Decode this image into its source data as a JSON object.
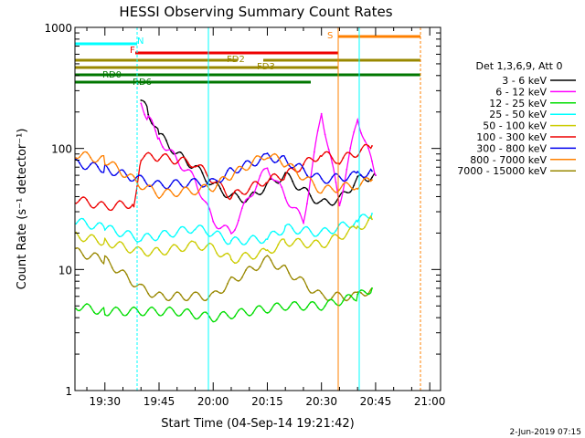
{
  "chart_data": {
    "type": "line",
    "title": "HESSI Observing Summary Count Rates",
    "xlabel": "Start Time (04-Sep-14 19:21:42)",
    "ylabel": "Count Rate (s⁻¹ detector⁻¹)",
    "yscale": "log",
    "ylim": [
      1,
      1000
    ],
    "xlim": [
      "19:21:42",
      "21:03:00"
    ],
    "x_ticks": [
      "19:30",
      "19:45",
      "20:00",
      "20:15",
      "20:30",
      "20:45",
      "21:00"
    ],
    "y_ticks": [
      "1",
      "10",
      "100",
      "1000"
    ],
    "grid": false,
    "legend": {
      "placement": "right",
      "header": "Det 1,3,6,9, Att 0",
      "entries": [
        {
          "label": "3 - 6 keV",
          "color": "#000000"
        },
        {
          "label": "6 - 12 keV",
          "color": "#ff00ff"
        },
        {
          "label": "12 - 25 keV",
          "color": "#00dd00"
        },
        {
          "label": "25 - 50 keV",
          "color": "#00ffff"
        },
        {
          "label": "50 - 100 keV",
          "color": "#cccc00"
        },
        {
          "label": "100 - 300 keV",
          "color": "#ee0000"
        },
        {
          "label": "300 - 800 keV",
          "color": "#0000ee"
        },
        {
          "label": "800 - 7000 keV",
          "color": "#ff8000"
        },
        {
          "label": "7000 - 15000 keV",
          "color": "#998800"
        }
      ]
    },
    "flags": [
      {
        "label": "N",
        "color": "#00ffff"
      },
      {
        "label": "F",
        "color": "#ee0000"
      },
      {
        "label": "S",
        "color": "#ff8000"
      },
      {
        "label": "FD2",
        "color": "#998800"
      },
      {
        "label": "FD3",
        "color": "#998800"
      },
      {
        "label": "RD0",
        "color": "#007700"
      },
      {
        "label": "RD6",
        "color": "#007700"
      }
    ],
    "series": [
      {
        "band": "3 - 6 keV",
        "x": [
          "19:40",
          "19:42",
          "19:45",
          "19:50",
          "19:55",
          "20:00",
          "20:05",
          "20:10",
          "20:15",
          "20:20",
          "20:25",
          "20:30",
          "20:35",
          "20:40",
          "20:45"
        ],
        "values": [
          250,
          200,
          130,
          90,
          70,
          50,
          40,
          38,
          50,
          60,
          45,
          35,
          38,
          55,
          60
        ]
      },
      {
        "band": "6 - 12 keV",
        "x": [
          "19:40",
          "19:42",
          "19:45",
          "19:50",
          "19:55",
          "20:00",
          "20:05",
          "20:10",
          "20:15",
          "20:20",
          "20:25",
          "20:30",
          "20:35",
          "20:40",
          "20:45"
        ],
        "values": [
          230,
          180,
          120,
          80,
          55,
          25,
          20,
          40,
          70,
          40,
          25,
          200,
          35,
          180,
          60
        ]
      },
      {
        "band": "25 - 50 keV",
        "x": [
          "19:22",
          "19:30",
          "19:40",
          "19:45",
          "19:55",
          "20:00",
          "20:05",
          "20:15",
          "20:20",
          "20:30",
          "20:40",
          "20:44"
        ],
        "values": [
          25,
          22,
          18,
          19,
          22,
          20,
          17,
          18,
          22,
          20,
          25,
          29
        ]
      },
      {
        "band": "50 - 100 keV",
        "x": [
          "19:22",
          "19:30",
          "19:40",
          "19:45",
          "19:55",
          "20:00",
          "20:05",
          "20:15",
          "20:20",
          "20:30",
          "20:40",
          "20:44"
        ],
        "values": [
          19,
          17,
          14,
          14,
          16,
          15,
          12,
          14,
          17,
          16,
          22,
          26
        ]
      },
      {
        "band": "100 - 300 keV",
        "x": [
          "19:22",
          "19:30",
          "19:38",
          "19:40",
          "19:45",
          "19:55",
          "20:00",
          "20:05",
          "20:15",
          "20:20",
          "20:30",
          "20:35",
          "20:44"
        ],
        "values": [
          38,
          33,
          35,
          85,
          85,
          75,
          55,
          40,
          55,
          60,
          90,
          80,
          105
        ]
      },
      {
        "band": "300 - 800 keV",
        "x": [
          "19:22",
          "19:30",
          "19:40",
          "19:45",
          "19:55",
          "20:00",
          "20:05",
          "20:15",
          "20:20",
          "20:30",
          "20:40",
          "20:44"
        ],
        "values": [
          75,
          68,
          55,
          50,
          52,
          52,
          65,
          85,
          80,
          55,
          60,
          65
        ]
      },
      {
        "band": "800 - 7000 keV",
        "x": [
          "19:22",
          "19:30",
          "19:40",
          "19:45",
          "19:55",
          "20:00",
          "20:05",
          "20:15",
          "20:20",
          "20:30",
          "20:40",
          "20:44"
        ],
        "values": [
          90,
          80,
          50,
          42,
          45,
          48,
          60,
          90,
          75,
          45,
          50,
          55
        ]
      },
      {
        "band": "7000 - 15000 keV",
        "x": [
          "19:22",
          "19:30",
          "19:40",
          "19:45",
          "19:55",
          "20:00",
          "20:05",
          "20:15",
          "20:20",
          "20:30",
          "20:40",
          "20:44"
        ],
        "values": [
          14,
          12,
          7,
          6,
          6,
          6,
          8,
          12,
          10,
          6,
          6,
          7
        ]
      },
      {
        "band": "12 - 25 keV",
        "x": [
          "19:22",
          "19:30",
          "19:40",
          "19:50",
          "20:00",
          "20:10",
          "20:20",
          "20:30",
          "20:40",
          "20:44"
        ],
        "values": [
          5,
          4.5,
          4.5,
          4.5,
          4,
          4.5,
          5,
          5,
          6,
          7
        ]
      }
    ]
  },
  "footer": {
    "timestamp": "2-Jun-2019 07:15"
  }
}
